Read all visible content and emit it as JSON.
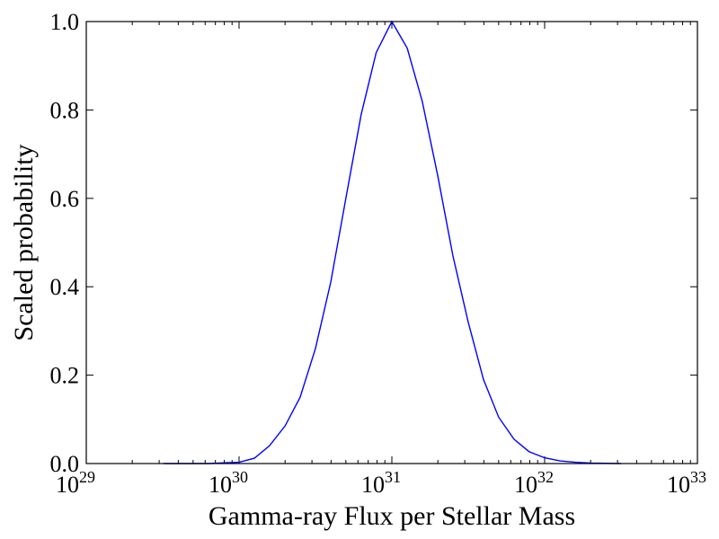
{
  "chart_data": {
    "type": "line",
    "title": "",
    "xlabel": "Gamma-ray Flux per Stellar Mass",
    "ylabel": "Scaled probability",
    "xscale": "log",
    "xlim": [
      1e+29,
      1e+33
    ],
    "ylim": [
      0.0,
      1.0
    ],
    "grid": false,
    "x_tick_labels": [
      {
        "base": "10",
        "exp": "29"
      },
      {
        "base": "10",
        "exp": "30"
      },
      {
        "base": "10",
        "exp": "31"
      },
      {
        "base": "10",
        "exp": "32"
      },
      {
        "base": "10",
        "exp": "33"
      }
    ],
    "y_tick_labels": [
      "0.0",
      "0.2",
      "0.4",
      "0.6",
      "0.8",
      "1.0"
    ],
    "series": [
      {
        "color": "#0000ff",
        "x": [
          3.2e+29,
          6.3e+29,
          1e+30,
          1.26e+30,
          1.58e+30,
          2e+30,
          2.51e+30,
          3.16e+30,
          3.98e+30,
          5e+30,
          6.3e+30,
          7.9e+30,
          1e+31,
          1.26e+31,
          1.58e+31,
          2e+31,
          2.51e+31,
          3.16e+31,
          3.98e+31,
          5e+31,
          6.3e+31,
          7.9e+31,
          1e+32,
          1.26e+32,
          1.58e+32,
          2e+32,
          3.16e+32
        ],
        "y": [
          0.0,
          0.0,
          0.003,
          0.012,
          0.04,
          0.085,
          0.15,
          0.26,
          0.41,
          0.6,
          0.79,
          0.93,
          1.0,
          0.94,
          0.82,
          0.65,
          0.47,
          0.32,
          0.19,
          0.105,
          0.055,
          0.027,
          0.013,
          0.006,
          0.003,
          0.001,
          0.0
        ]
      }
    ]
  }
}
